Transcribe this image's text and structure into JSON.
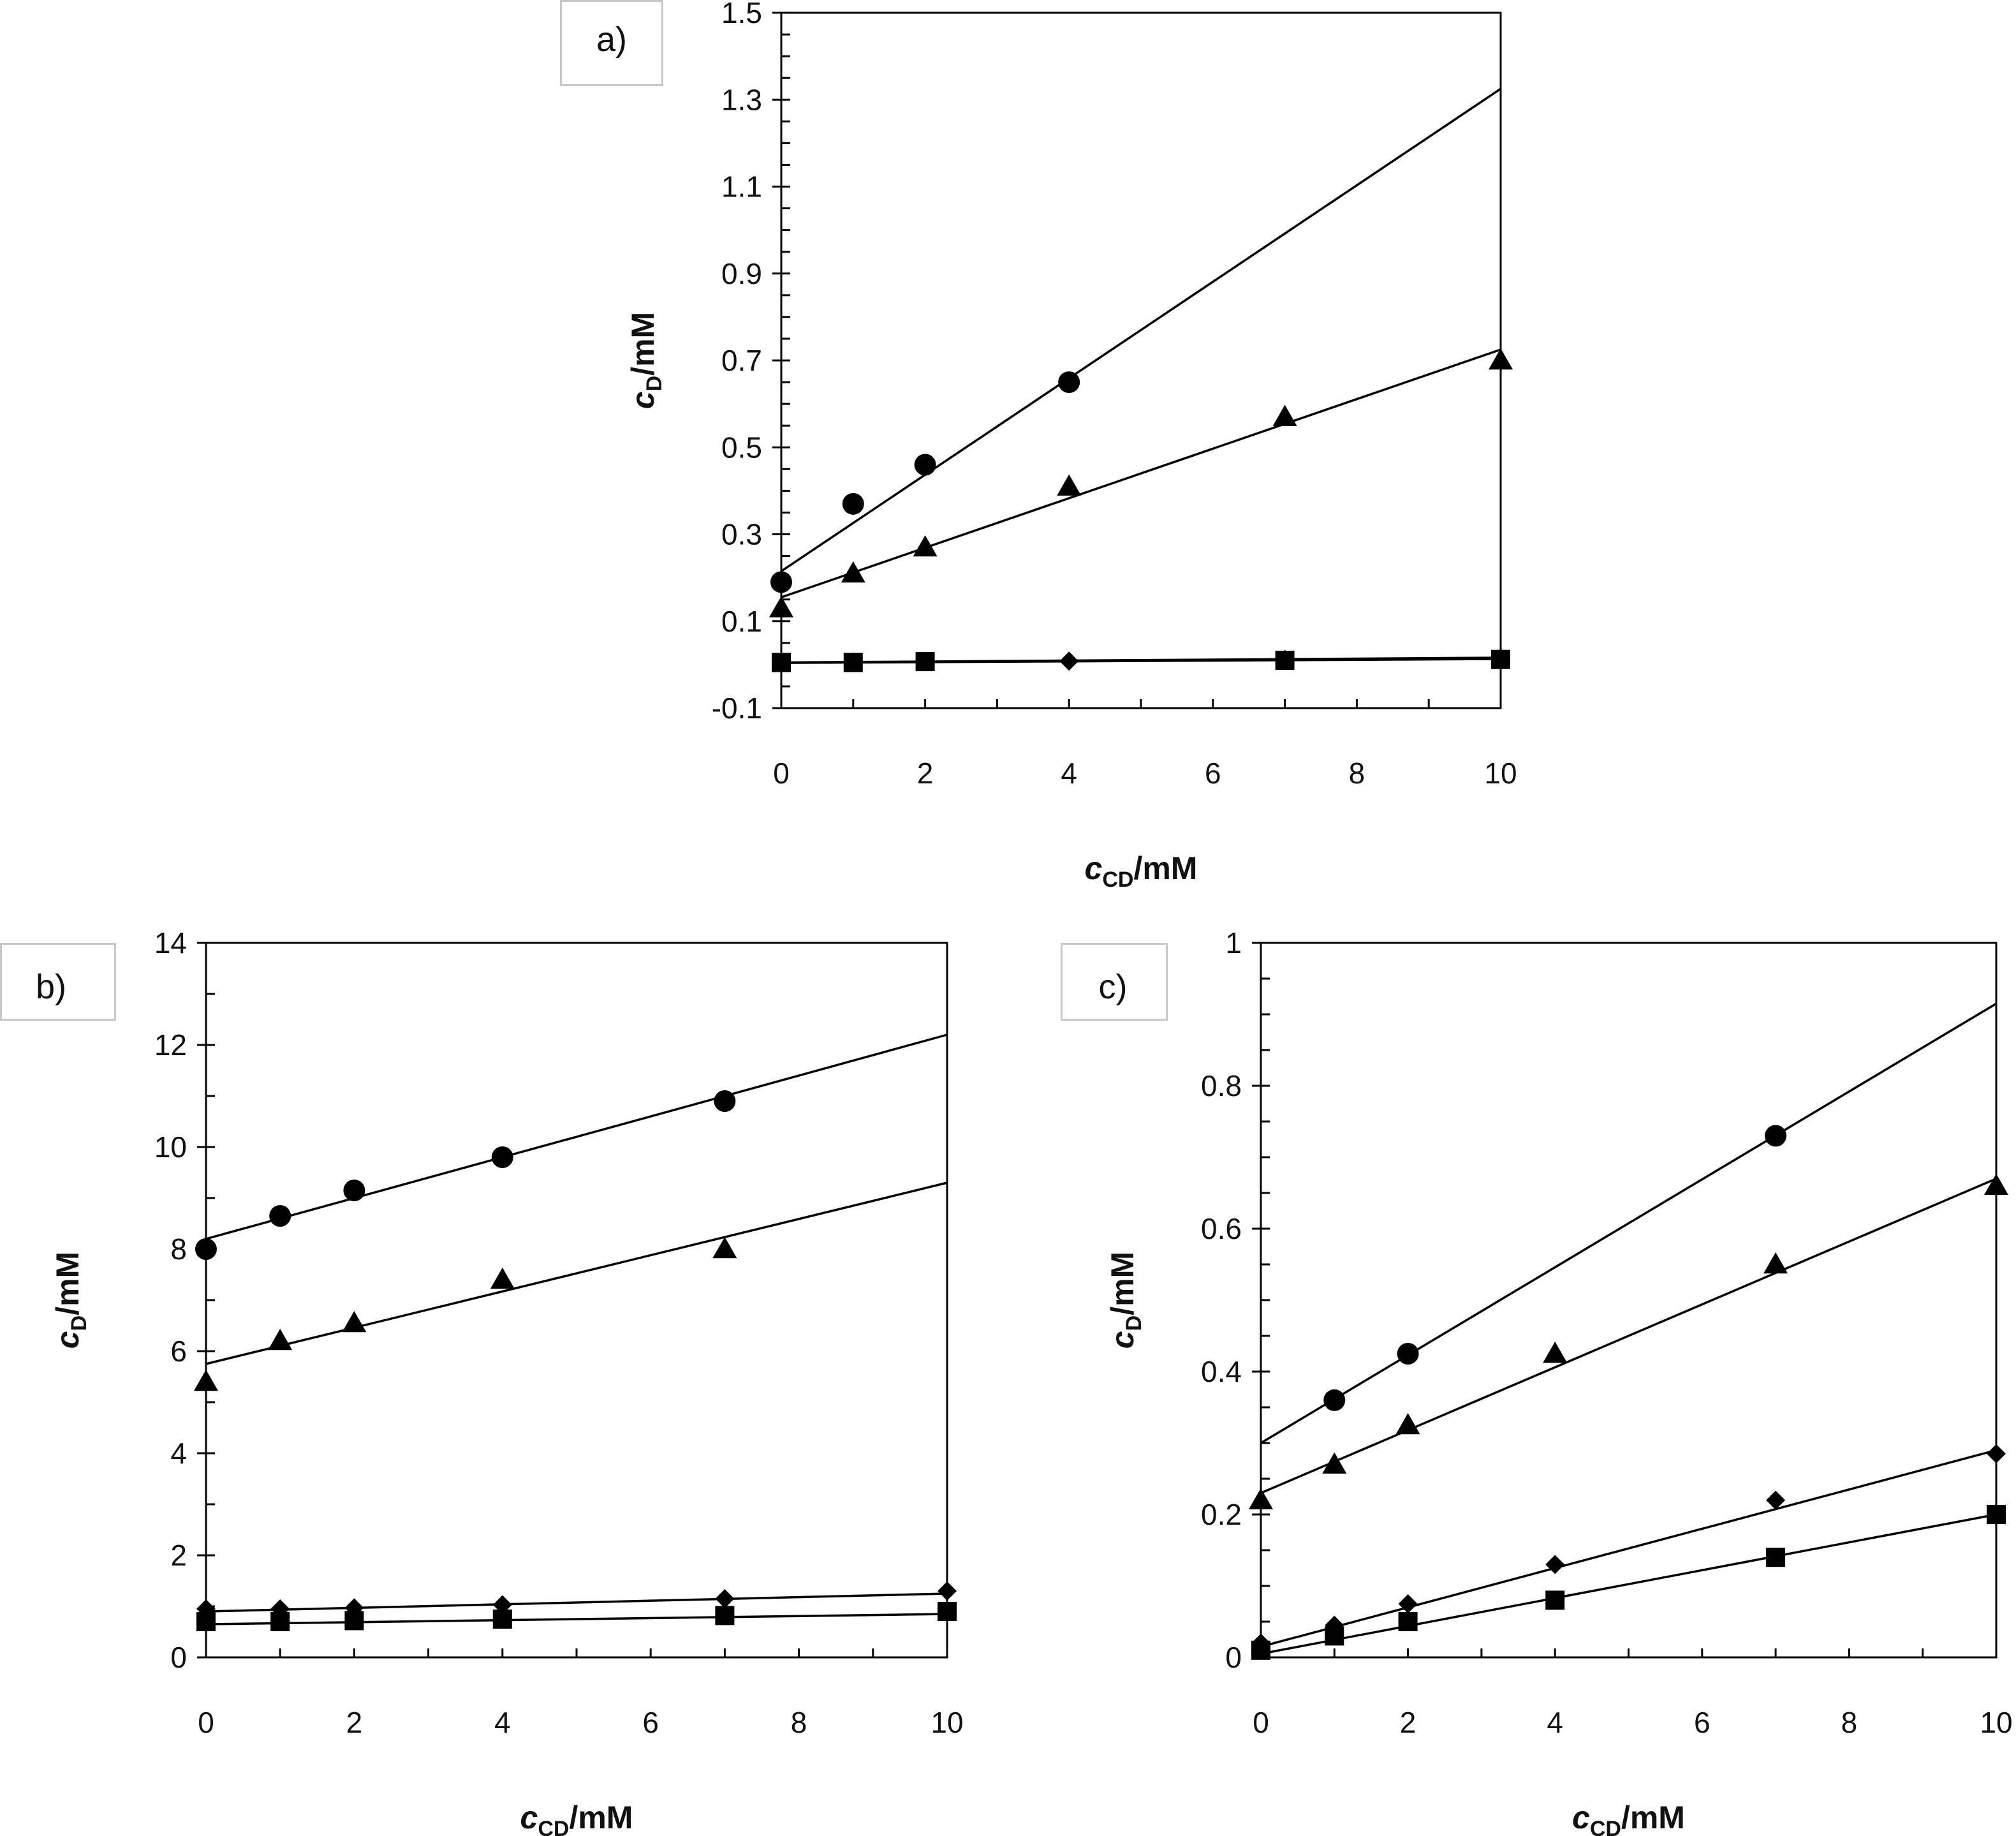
{
  "chart_data": [
    {
      "type": "scatter",
      "panel_label": "a)",
      "xlabel": {
        "var": "c",
        "sub": "CD",
        "unit": "/mM"
      },
      "ylabel": {
        "var": "c",
        "sub": "D",
        "unit": "/mM"
      },
      "xlim": [
        0,
        10
      ],
      "ylim": [
        -0.1,
        1.5
      ],
      "xticks": [
        0,
        2,
        4,
        6,
        8,
        10
      ],
      "yticks": [
        -0.1,
        0.1,
        0.3,
        0.5,
        0.7,
        0.9,
        1.1,
        1.3,
        1.5
      ],
      "ytick_labels": [
        "-0.1",
        "0.1",
        "0.3",
        "0.5",
        "0.7",
        "0.9",
        "1.1",
        "1.3",
        "1.5"
      ],
      "xminor": 1,
      "yminor": 0.05,
      "grid": false,
      "series": [
        {
          "marker": "circle",
          "x": [
            0,
            1,
            2,
            4
          ],
          "y": [
            0.19,
            0.37,
            0.46,
            0.65
          ],
          "fit": {
            "x": [
              0,
              10
            ],
            "y": [
              0.215,
              1.325
            ]
          }
        },
        {
          "marker": "triangle",
          "x": [
            0,
            1,
            2,
            4,
            7,
            10
          ],
          "y": [
            0.13,
            0.21,
            0.27,
            0.41,
            0.57,
            0.7
          ],
          "fit": {
            "x": [
              0,
              10
            ],
            "y": [
              0.155,
              0.725
            ]
          }
        },
        {
          "marker": "diamond",
          "x": [
            0,
            1,
            2,
            4,
            7,
            10
          ],
          "y": [
            0.005,
            0.006,
            0.008,
            0.008,
            0.012,
            0.015
          ],
          "fit": {
            "x": [
              0,
              10
            ],
            "y": [
              0.005,
              0.016
            ]
          }
        },
        {
          "marker": "square",
          "x": [
            0,
            1,
            2,
            7,
            10
          ],
          "y": [
            0.005,
            0.005,
            0.007,
            0.01,
            0.012
          ],
          "fit": {
            "x": [
              0,
              10
            ],
            "y": [
              0.004,
              0.013
            ]
          }
        }
      ]
    },
    {
      "type": "scatter",
      "panel_label": "b)",
      "xlabel": {
        "var": "c",
        "sub": "CD",
        "unit": "/mM"
      },
      "ylabel": {
        "var": "c",
        "sub": "D",
        "unit": "/mM"
      },
      "xlim": [
        0,
        10
      ],
      "ylim": [
        0,
        14
      ],
      "xticks": [
        0,
        2,
        4,
        6,
        8,
        10
      ],
      "yticks": [
        0,
        2,
        4,
        6,
        8,
        10,
        12,
        14
      ],
      "ytick_labels": [
        "0",
        "2",
        "4",
        "6",
        "8",
        "10",
        "12",
        "14"
      ],
      "xminor": 1,
      "yminor": 1,
      "grid": false,
      "series": [
        {
          "marker": "circle",
          "x": [
            0,
            1,
            2,
            4,
            7
          ],
          "y": [
            8.0,
            8.65,
            9.15,
            9.8,
            10.9
          ],
          "fit": {
            "x": [
              0,
              10
            ],
            "y": [
              8.2,
              12.2
            ]
          }
        },
        {
          "marker": "triangle",
          "x": [
            0,
            1,
            2,
            4,
            7
          ],
          "y": [
            5.4,
            6.2,
            6.55,
            7.4,
            8.0
          ],
          "fit": {
            "x": [
              0,
              10
            ],
            "y": [
              5.75,
              9.3
            ]
          }
        },
        {
          "marker": "diamond",
          "x": [
            0,
            1,
            2,
            4,
            7,
            10
          ],
          "y": [
            0.95,
            0.95,
            0.97,
            1.03,
            1.15,
            1.3
          ],
          "fit": {
            "x": [
              0,
              10
            ],
            "y": [
              0.9,
              1.25
            ]
          }
        },
        {
          "marker": "square",
          "x": [
            0,
            1,
            2,
            4,
            7,
            10
          ],
          "y": [
            0.7,
            0.7,
            0.72,
            0.75,
            0.82,
            0.9
          ],
          "fit": {
            "x": [
              0,
              10
            ],
            "y": [
              0.65,
              0.85
            ]
          }
        }
      ]
    },
    {
      "type": "scatter",
      "panel_label": "c)",
      "xlabel": {
        "var": "c",
        "sub": "CD",
        "unit": "/mM"
      },
      "ylabel": {
        "var": "c",
        "sub": "D",
        "unit": "/mM"
      },
      "xlim": [
        0,
        10
      ],
      "ylim": [
        0,
        1
      ],
      "xticks": [
        0,
        2,
        4,
        6,
        8,
        10
      ],
      "yticks": [
        0,
        0.2,
        0.4,
        0.6,
        0.8,
        1
      ],
      "ytick_labels": [
        "0",
        "0.2",
        "0.4",
        "0.6",
        "0.8",
        "1"
      ],
      "xminor": 1,
      "yminor": 0.05,
      "grid": false,
      "series": [
        {
          "marker": "circle",
          "x": [
            1,
            2,
            7
          ],
          "y": [
            0.36,
            0.425,
            0.73
          ],
          "fit": {
            "x": [
              0,
              10
            ],
            "y": [
              0.3,
              0.915
            ]
          }
        },
        {
          "marker": "triangle",
          "x": [
            0,
            1,
            2,
            4,
            7,
            10
          ],
          "y": [
            0.22,
            0.27,
            0.325,
            0.425,
            0.55,
            0.66
          ],
          "fit": {
            "x": [
              0,
              10
            ],
            "y": [
              0.23,
              0.67
            ]
          }
        },
        {
          "marker": "diamond",
          "x": [
            0,
            1,
            2,
            4,
            7,
            10
          ],
          "y": [
            0.02,
            0.045,
            0.075,
            0.13,
            0.22,
            0.285
          ],
          "fit": {
            "x": [
              0,
              10
            ],
            "y": [
              0.015,
              0.29
            ]
          }
        },
        {
          "marker": "square",
          "x": [
            0,
            1,
            2,
            4,
            7,
            10
          ],
          "y": [
            0.01,
            0.03,
            0.05,
            0.08,
            0.14,
            0.2
          ],
          "fit": {
            "x": [
              0,
              10
            ],
            "y": [
              0.005,
              0.2
            ]
          }
        }
      ]
    }
  ]
}
